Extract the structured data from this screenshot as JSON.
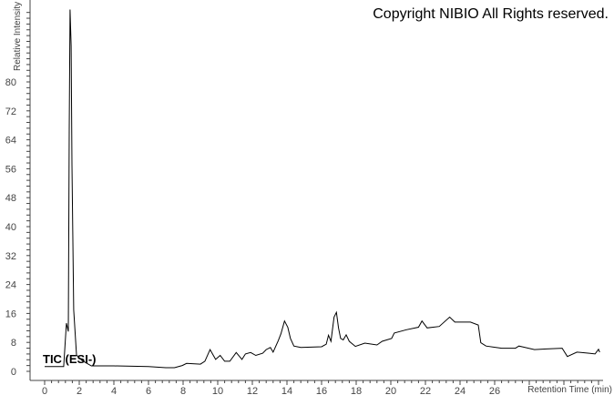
{
  "copyright": "Copyright NIBIO All Rights reserved.",
  "trace_label": "TIC (ESI-)",
  "chart_data": {
    "type": "line",
    "xlabel": "Retention Time (min)",
    "ylabel": "Relative Intensity",
    "xlim": [
      0,
      32
    ],
    "ylim": [
      0,
      100
    ],
    "xticks": [
      0,
      2,
      4,
      6,
      8,
      10,
      12,
      14,
      16,
      18,
      20,
      22,
      24,
      26
    ],
    "yticks": [
      0,
      8,
      16,
      24,
      32,
      40,
      48,
      56,
      64,
      72,
      80
    ],
    "line_color": "#000000",
    "grid": false,
    "series": [
      {
        "x": [
          0,
          1.1,
          1.26,
          1.37,
          1.42,
          1.47,
          1.53,
          1.58,
          1.68,
          1.84,
          2.16,
          2.7,
          4,
          6,
          7,
          7.5,
          7.95,
          8.2,
          9,
          9.26,
          9.56,
          9.88,
          10.14,
          10.4,
          10.7,
          11.07,
          11.4,
          11.6,
          11.9,
          12.2,
          12.6,
          12.8,
          13.04,
          13.2,
          13.5,
          13.65,
          13.86,
          14.05,
          14.2,
          14.4,
          14.8,
          16.0,
          16.27,
          16.4,
          16.54,
          16.72,
          16.86,
          16.98,
          17.1,
          17.25,
          17.42,
          17.6,
          17.95,
          18.5,
          19.2,
          19.5,
          20.05,
          20.2,
          20.9,
          21.6,
          21.8,
          22.1,
          22.8,
          23.4,
          23.7,
          24.6,
          25.05,
          25.2,
          25.5,
          26.4,
          27.2,
          27.4,
          28.3,
          29.0,
          29.9,
          30.2,
          30.75,
          31.46,
          31.8,
          32.0,
          32.07
        ],
        "y": [
          1.3,
          1.3,
          13.3,
          11,
          67,
          100,
          90,
          57,
          17,
          4.5,
          3,
          1.5,
          1.5,
          1.3,
          1.0,
          1.0,
          1.6,
          2.2,
          2.0,
          2.8,
          6,
          3.3,
          4.4,
          2.8,
          2.8,
          5.2,
          3.3,
          4.8,
          5.2,
          4.4,
          5,
          6,
          6.6,
          5.3,
          8.5,
          10.4,
          13.9,
          12.2,
          9.1,
          7,
          6.6,
          6.8,
          7.5,
          10,
          8.3,
          15,
          16.3,
          12,
          9.1,
          8.7,
          10.1,
          8.3,
          6.9,
          7.8,
          7.3,
          8.3,
          9.1,
          10.6,
          11.5,
          12.2,
          13.9,
          12,
          12.4,
          15,
          13.6,
          13.6,
          12.8,
          7.9,
          7,
          6.4,
          6.4,
          7,
          6,
          6.2,
          6.4,
          4.1,
          5.3,
          5.0,
          4.8,
          6.1,
          5.3
        ]
      }
    ]
  }
}
